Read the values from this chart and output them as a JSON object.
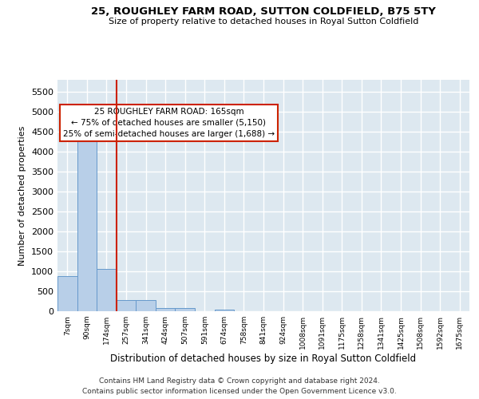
{
  "title": "25, ROUGHLEY FARM ROAD, SUTTON COLDFIELD, B75 5TY",
  "subtitle": "Size of property relative to detached houses in Royal Sutton Coldfield",
  "xlabel": "Distribution of detached houses by size in Royal Sutton Coldfield",
  "ylabel": "Number of detached properties",
  "footnote1": "Contains HM Land Registry data © Crown copyright and database right 2024.",
  "footnote2": "Contains public sector information licensed under the Open Government Licence v3.0.",
  "bar_color": "#b8cfe8",
  "bar_edge_color": "#6699cc",
  "bg_color": "#dde8f0",
  "grid_color": "#ffffff",
  "annotation_text": "25 ROUGHLEY FARM ROAD: 165sqm\n← 75% of detached houses are smaller (5,150)\n25% of semi-detached houses are larger (1,688) →",
  "vline_color": "#cc2200",
  "categories": [
    "7sqm",
    "90sqm",
    "174sqm",
    "257sqm",
    "341sqm",
    "424sqm",
    "507sqm",
    "591sqm",
    "674sqm",
    "758sqm",
    "841sqm",
    "924sqm",
    "1008sqm",
    "1091sqm",
    "1175sqm",
    "1258sqm",
    "1341sqm",
    "1425sqm",
    "1508sqm",
    "1592sqm",
    "1675sqm"
  ],
  "values": [
    880,
    4560,
    1060,
    290,
    290,
    85,
    85,
    0,
    50,
    0,
    0,
    0,
    0,
    0,
    0,
    0,
    0,
    0,
    0,
    0,
    0
  ],
  "ylim": [
    0,
    5800
  ],
  "yticks": [
    0,
    500,
    1000,
    1500,
    2000,
    2500,
    3000,
    3500,
    4000,
    4500,
    5000,
    5500
  ],
  "vline_pos": 2.5
}
